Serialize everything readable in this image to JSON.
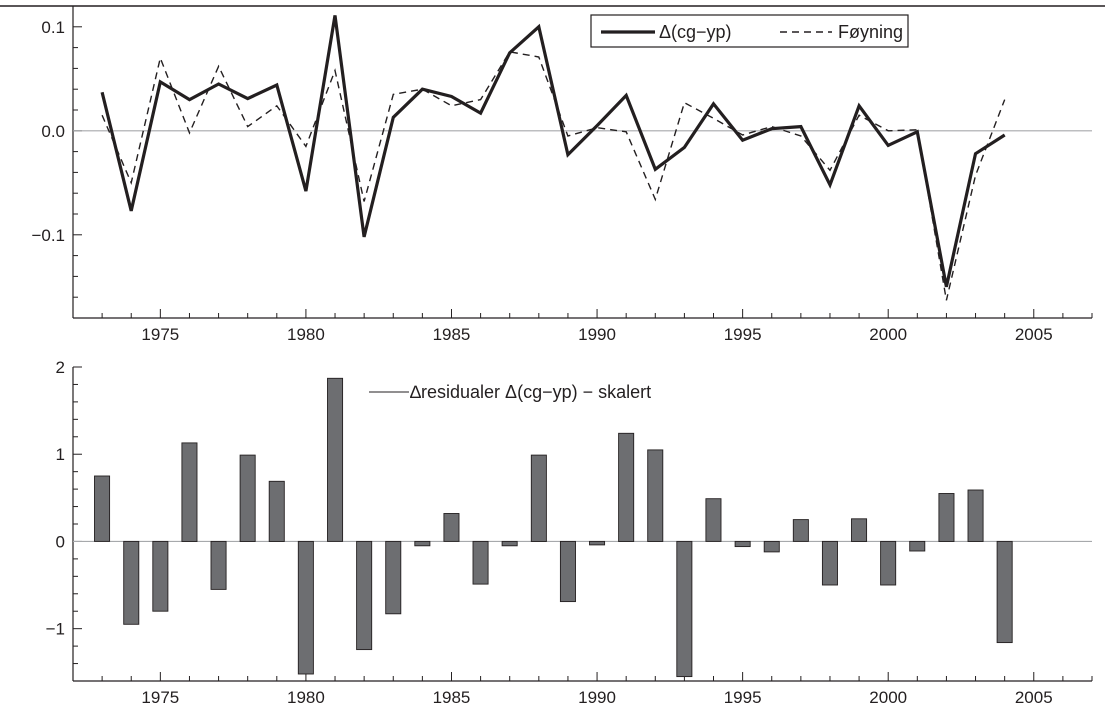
{
  "chart_data": [
    {
      "type": "line",
      "x": [
        1973,
        1974,
        1975,
        1976,
        1977,
        1978,
        1979,
        1980,
        1981,
        1982,
        1983,
        1984,
        1985,
        1986,
        1987,
        1988,
        1989,
        1990,
        1991,
        1992,
        1993,
        1994,
        1995,
        1996,
        1997,
        1998,
        1999,
        2000,
        2001,
        2002,
        2003,
        2004
      ],
      "series": [
        {
          "name": "Δ(cg−yp)",
          "style": "solid-thick",
          "values": [
            0.037,
            -0.077,
            0.047,
            0.03,
            0.045,
            0.031,
            0.044,
            -0.058,
            0.111,
            -0.102,
            0.013,
            0.04,
            0.033,
            0.017,
            0.075,
            0.1,
            -0.023,
            0.005,
            0.034,
            -0.037,
            -0.016,
            0.026,
            -0.009,
            0.002,
            0.004,
            -0.052,
            0.024,
            -0.014,
            -0.001,
            -0.15,
            -0.022,
            -0.004
          ]
        },
        {
          "name": "Føyning",
          "style": "dashed",
          "values": [
            0.015,
            -0.05,
            0.07,
            -0.002,
            0.062,
            0.004,
            0.024,
            -0.015,
            0.058,
            -0.068,
            0.035,
            0.04,
            0.024,
            0.03,
            0.076,
            0.071,
            -0.005,
            0.003,
            -0.001,
            -0.066,
            0.027,
            0.012,
            -0.004,
            0.004,
            -0.005,
            -0.038,
            0.015,
            0.0,
            0.001,
            -0.163,
            -0.043,
            0.03
          ]
        }
      ],
      "xlim": [
        1972,
        2007
      ],
      "ylim": [
        -0.18,
        0.12
      ],
      "x_ticks": [
        1975,
        1980,
        1985,
        1990,
        1995,
        2000,
        2005
      ],
      "x_tick_labels": [
        "1975",
        "1980",
        "1985",
        "1990",
        "1995",
        "2000",
        "2005"
      ],
      "y_ticks": [
        -0.1,
        0.0,
        0.1
      ],
      "y_tick_labels": [
        "−0.1",
        "0.0",
        "0.1"
      ],
      "legend_position": "top-right",
      "zero_line": true
    },
    {
      "type": "bar",
      "x": [
        1973,
        1974,
        1975,
        1976,
        1977,
        1978,
        1979,
        1980,
        1981,
        1982,
        1983,
        1984,
        1985,
        1986,
        1987,
        1988,
        1989,
        1990,
        1991,
        1992,
        1993,
        1994,
        1995,
        1996,
        1997,
        1998,
        1999,
        2000,
        2001,
        2002,
        2003,
        2004
      ],
      "series": [
        {
          "name": "∆residualer Δ(cg−yp) − skalert",
          "values": [
            0.75,
            -0.95,
            -0.8,
            1.13,
            -0.55,
            0.99,
            0.69,
            -1.52,
            1.87,
            -1.24,
            -0.83,
            -0.05,
            0.32,
            -0.49,
            -0.05,
            0.99,
            -0.69,
            -0.04,
            1.24,
            1.05,
            -1.55,
            0.49,
            -0.06,
            -0.12,
            0.25,
            -0.5,
            0.26,
            -0.5,
            -0.11,
            0.55,
            0.59,
            -1.16
          ]
        }
      ],
      "xlim": [
        1972,
        2007
      ],
      "ylim": [
        -1.6,
        2.0
      ],
      "x_ticks": [
        1975,
        1980,
        1985,
        1990,
        1995,
        2000,
        2005
      ],
      "x_tick_labels": [
        "1975",
        "1980",
        "1985",
        "1990",
        "1995",
        "2000",
        "2005"
      ],
      "y_ticks": [
        -1,
        0,
        1,
        2
      ],
      "y_tick_labels": [
        "−1",
        "0",
        "1",
        "2"
      ],
      "legend_position": "top-center",
      "bar_color": "#6d6e71",
      "zero_line": true
    }
  ],
  "colors": {
    "ink": "#231f20",
    "bar_fill": "#6d6e71",
    "zero_line": "#a7a9ac"
  }
}
